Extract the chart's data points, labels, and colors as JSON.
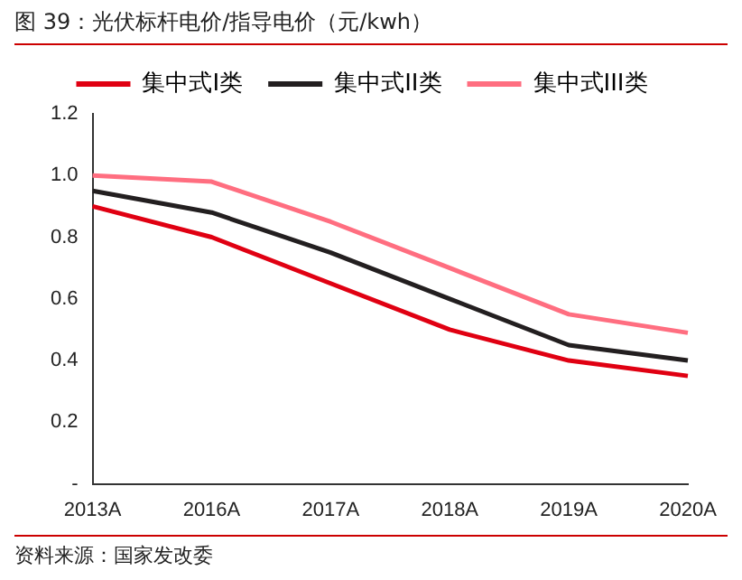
{
  "chart_data": {
    "type": "line",
    "title": "图 39：光伏标杆电价/指导电价（元/kwh）",
    "categories": [
      "2013A",
      "2016A",
      "2017A",
      "2018A",
      "2019A",
      "2020A"
    ],
    "series": [
      {
        "name": "集中式I类",
        "color": "#e00012",
        "values": [
          0.9,
          0.8,
          0.65,
          0.5,
          0.4,
          0.35
        ]
      },
      {
        "name": "集中式II类",
        "color": "#231f20",
        "values": [
          0.95,
          0.88,
          0.75,
          0.6,
          0.45,
          0.4
        ]
      },
      {
        "name": "集中式III类",
        "color": "#ff6e80",
        "values": [
          1.0,
          0.98,
          0.85,
          0.7,
          0.55,
          0.49
        ]
      }
    ],
    "ylim": [
      0,
      1.2
    ],
    "yticks": [
      {
        "value": 0,
        "label": "-"
      },
      0.2,
      0.4,
      0.6,
      0.8,
      {
        "value": 1,
        "label": "1.0"
      },
      1.2
    ],
    "grid": false,
    "legend": "top",
    "marker": "none",
    "line_style": "solid",
    "annotations": [
      "资料来源：国家发改委"
    ]
  }
}
